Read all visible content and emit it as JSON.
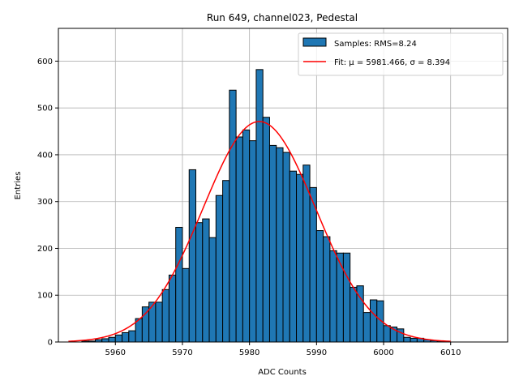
{
  "chart_data": {
    "type": "bar",
    "title": "Run 649, channel023, Pedestal",
    "xlabel": "ADC Counts",
    "ylabel": "Entries",
    "xlim": [
      5951.5,
      6018.5
    ],
    "ylim": [
      0,
      670
    ],
    "xticks": [
      5960,
      5970,
      5980,
      5990,
      6000,
      6010
    ],
    "yticks": [
      0,
      100,
      200,
      300,
      400,
      500,
      600
    ],
    "grid": true,
    "legend_position": "upper-right",
    "bar_color": "#1f77b4",
    "fit_color": "#ff0000",
    "bin_width": 1,
    "series": [
      {
        "name": "Samples: RMS=8.24",
        "kind": "histogram",
        "bin_edges": [
          5955,
          5956,
          5957,
          5958,
          5959,
          5960,
          5961,
          5962,
          5963,
          5964,
          5965,
          5966,
          5967,
          5968,
          5969,
          5970,
          5971,
          5972,
          5973,
          5974,
          5975,
          5976,
          5977,
          5978,
          5979,
          5980,
          5981,
          5982,
          5983,
          5984,
          5985,
          5986,
          5987,
          5988,
          5989,
          5990,
          5991,
          5992,
          5993,
          5994,
          5995,
          5996,
          5997,
          5998,
          5999,
          6000,
          6001,
          6002,
          6003,
          6004,
          6005,
          6006,
          6007,
          6008,
          6009
        ],
        "values": [
          2,
          2,
          5,
          7,
          10,
          15,
          20,
          24,
          50,
          75,
          85,
          85,
          112,
          143,
          245,
          157,
          368,
          255,
          263,
          223,
          313,
          345,
          538,
          438,
          453,
          430,
          582,
          480,
          420,
          415,
          405,
          365,
          358,
          378,
          330,
          238,
          225,
          195,
          190,
          190,
          117,
          120,
          63,
          90,
          88,
          35,
          32,
          28,
          10,
          8,
          8,
          5,
          3,
          2
        ]
      },
      {
        "name": "Fit: μ = 5981.466, σ = 8.394",
        "kind": "gaussian-fit",
        "mu": 5981.466,
        "sigma": 8.394,
        "amplitude": 471,
        "x_range": [
          5953,
          6010
        ]
      }
    ]
  }
}
